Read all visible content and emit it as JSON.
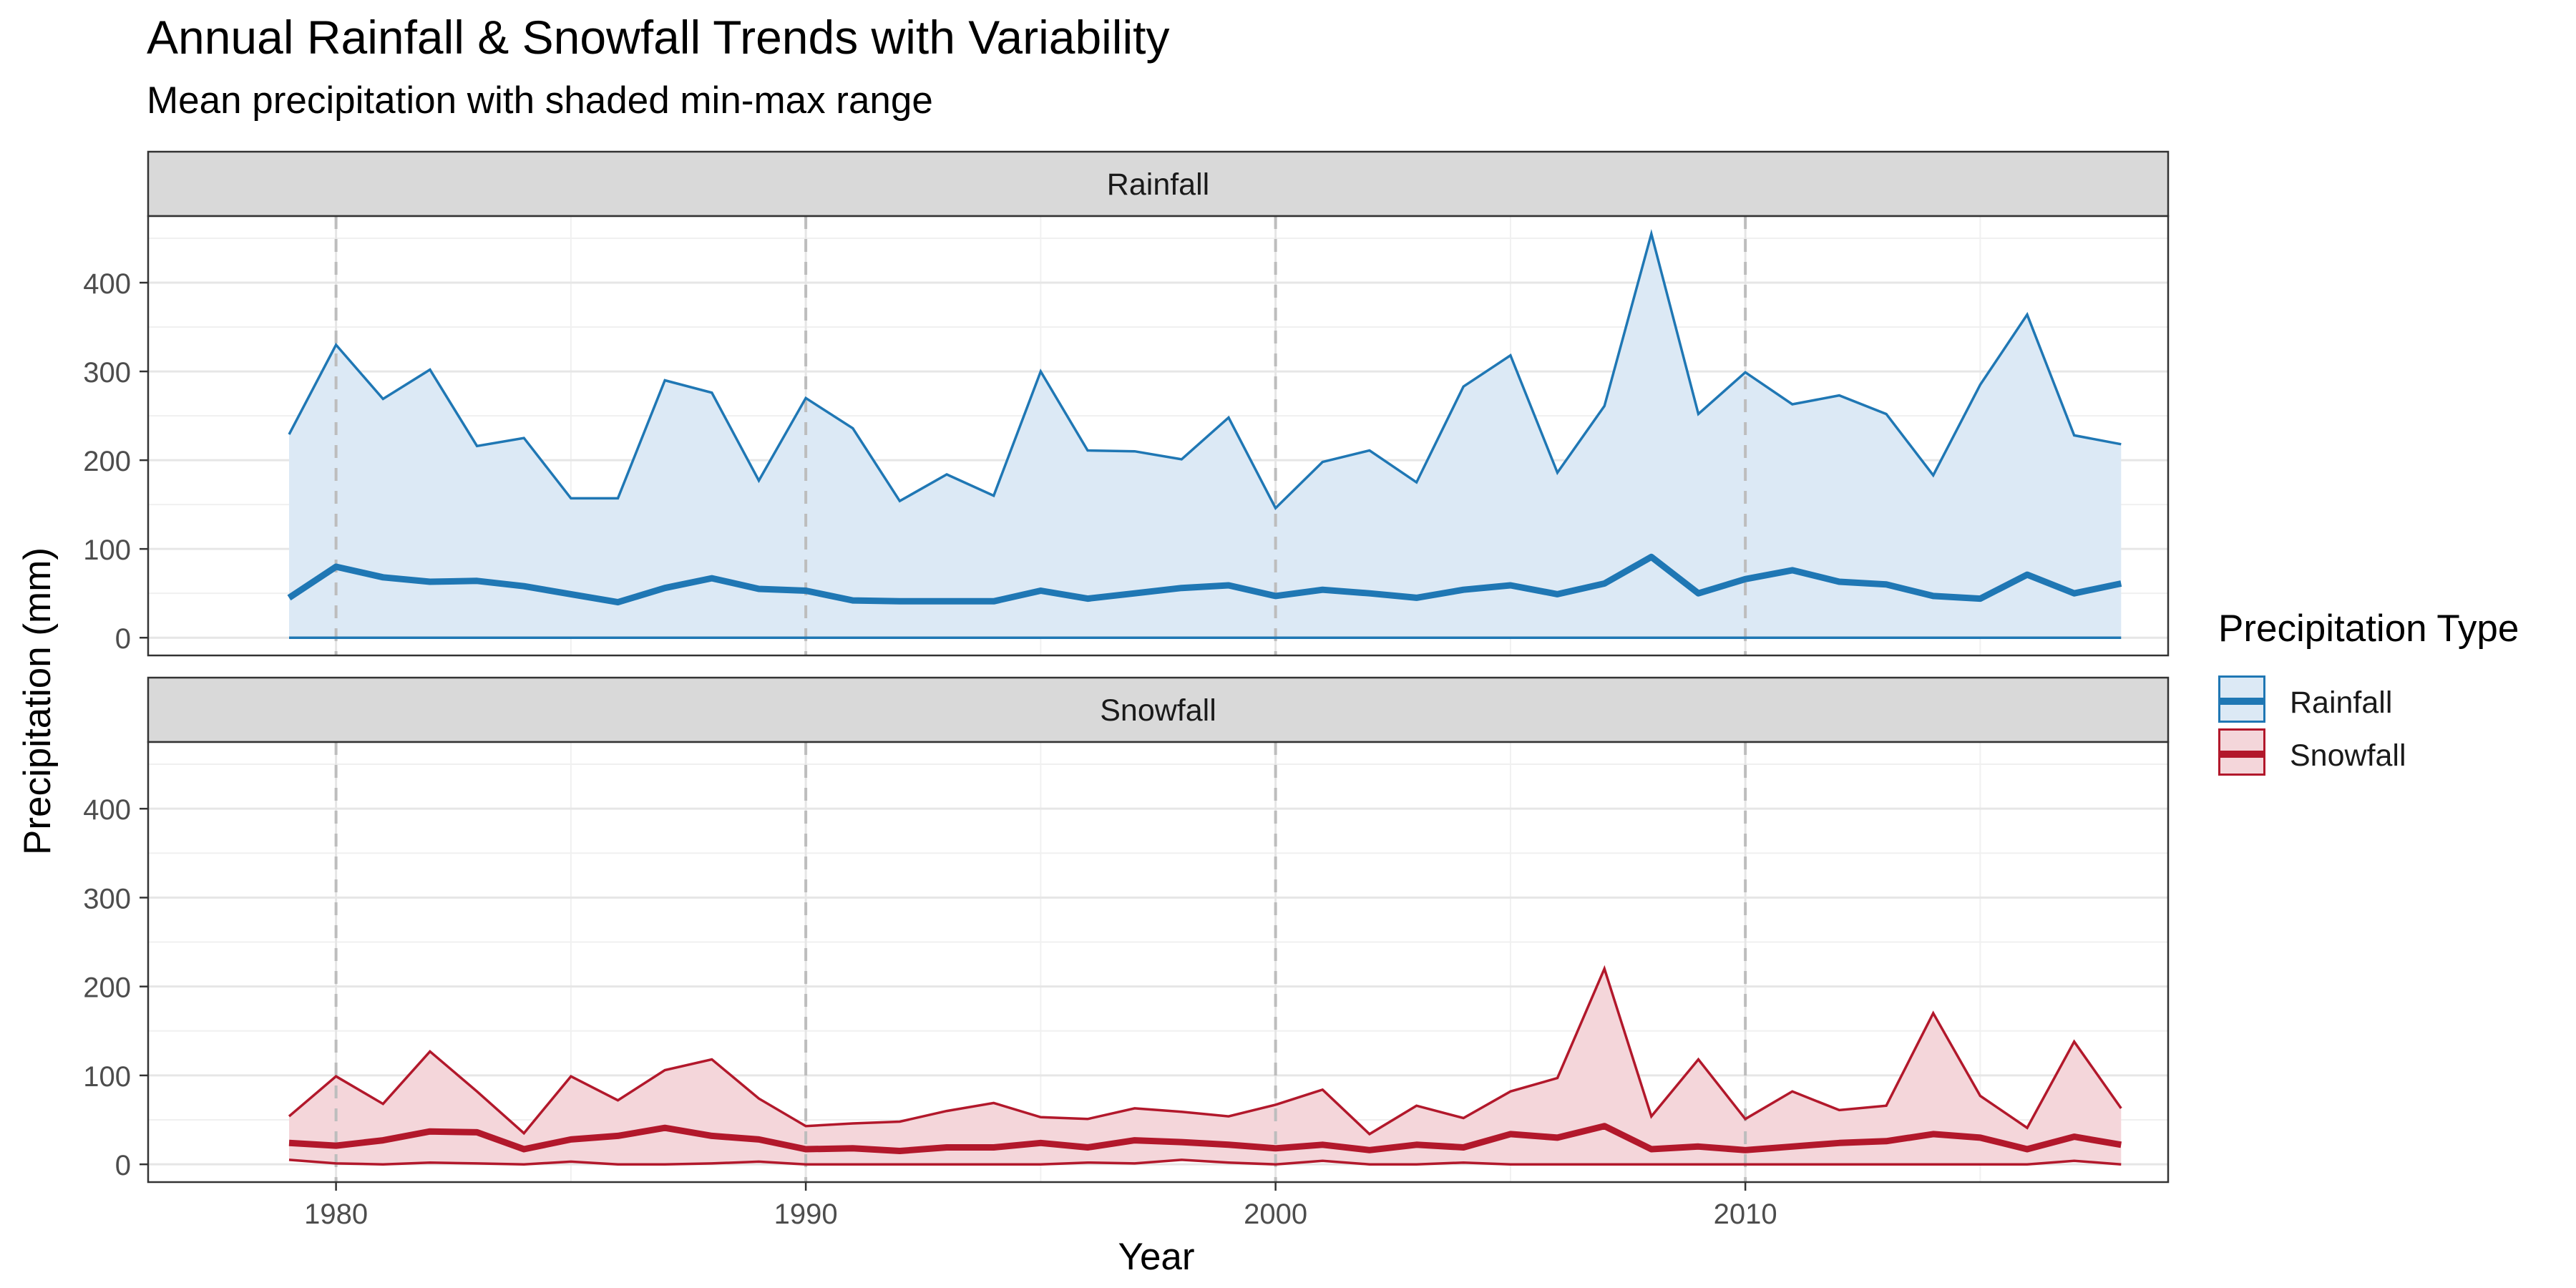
{
  "title": "Annual Rainfall & Snowfall Trends with Variability",
  "subtitle": "Mean precipitation with shaded min-max range",
  "legend": {
    "title": "Precipitation Type",
    "items": [
      {
        "label": "Rainfall",
        "color": "#1f77b4",
        "fill": "#dce9f5"
      },
      {
        "label": "Snowfall",
        "color": "#b2182b",
        "fill": "#f4d6da"
      }
    ]
  },
  "chart_data": {
    "type": "area",
    "facets": [
      "Rainfall",
      "Snowfall"
    ],
    "xlabel": "Year",
    "ylabel": "Precipitation (mm)",
    "xlim": [
      1976,
      2019
    ],
    "ylim": [
      -20,
      475
    ],
    "x_ticks": [
      1980,
      1990,
      2000,
      2010
    ],
    "y_ticks": [
      0,
      100,
      200,
      300,
      400
    ],
    "vlines": [
      1980,
      1990,
      2000,
      2010
    ],
    "grid": true,
    "legend_position": "right",
    "x": [
      1979,
      1980,
      1981,
      1982,
      1983,
      1984,
      1985,
      1986,
      1987,
      1988,
      1989,
      1990,
      1991,
      1992,
      1993,
      1994,
      1995,
      1996,
      1997,
      1998,
      1999,
      2000,
      2001,
      2002,
      2003,
      2004,
      2005,
      2006,
      2007,
      2008,
      2009,
      2010,
      2011,
      2012,
      2013,
      2014,
      2015,
      2016,
      2017,
      2018
    ],
    "series": [
      {
        "name": "Rainfall",
        "color": "#1f77b4",
        "fill": "#dce9f5",
        "mean": [
          45,
          80,
          68,
          63,
          64,
          58,
          49,
          40,
          56,
          67,
          55,
          53,
          42,
          41,
          41,
          41,
          53,
          44,
          50,
          56,
          59,
          47,
          54,
          50,
          45,
          54,
          59,
          49,
          61,
          91,
          50,
          66,
          76,
          63,
          60,
          47,
          44,
          71,
          50,
          61
        ],
        "max": [
          229,
          330,
          269,
          302,
          216,
          225,
          157,
          157,
          290,
          276,
          177,
          270,
          236,
          154,
          184,
          160,
          300,
          211,
          210,
          201,
          248,
          146,
          198,
          211,
          175,
          283,
          318,
          186,
          261,
          455,
          252,
          299,
          263,
          273,
          252,
          183,
          285,
          364,
          228,
          218
        ],
        "min": [
          0,
          0,
          0,
          0,
          0,
          0,
          0,
          0,
          0,
          0,
          0,
          0,
          0,
          0,
          0,
          0,
          0,
          0,
          0,
          0,
          0,
          0,
          0,
          0,
          0,
          0,
          0,
          0,
          0,
          0,
          0,
          0,
          0,
          0,
          0,
          0,
          0,
          0,
          0,
          0
        ]
      },
      {
        "name": "Snowfall",
        "color": "#b2182b",
        "fill": "#f4d6da",
        "mean": [
          24,
          21,
          27,
          37,
          36,
          17,
          28,
          32,
          41,
          32,
          28,
          17,
          18,
          15,
          19,
          19,
          24,
          19,
          27,
          25,
          22,
          18,
          22,
          16,
          22,
          19,
          34,
          30,
          43,
          17,
          20,
          16,
          20,
          24,
          26,
          34,
          30,
          17,
          31,
          22
        ],
        "max": [
          54,
          99,
          68,
          127,
          82,
          35,
          99,
          72,
          106,
          118,
          74,
          43,
          46,
          48,
          60,
          69,
          53,
          51,
          63,
          59,
          54,
          67,
          84,
          34,
          66,
          52,
          82,
          97,
          220,
          54,
          118,
          51,
          82,
          61,
          66,
          170,
          77,
          41,
          138,
          63
        ],
        "min": [
          5,
          1,
          0,
          2,
          1,
          0,
          3,
          0,
          0,
          1,
          3,
          0,
          0,
          0,
          0,
          0,
          0,
          2,
          1,
          5,
          2,
          0,
          4,
          0,
          0,
          2,
          0,
          0,
          0,
          0,
          0,
          0,
          0,
          0,
          0,
          0,
          0,
          0,
          4,
          0
        ]
      }
    ]
  }
}
